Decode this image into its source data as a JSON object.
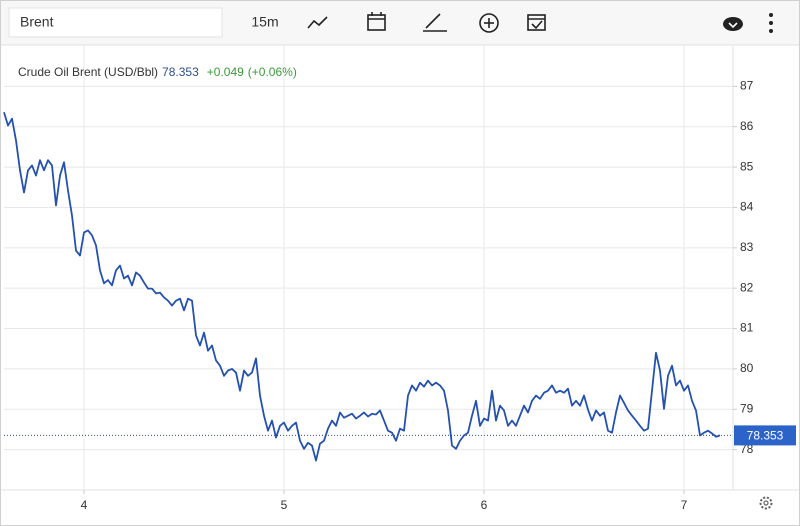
{
  "toolbar": {
    "symbol": "Brent",
    "interval": "15m"
  },
  "chart_data": {
    "type": "line",
    "title": "Crude Oil Brent (USD/Bbl)",
    "last": 78.353,
    "change": "+0.049",
    "change_pct": "(+0.06%)",
    "color": "#2451b0",
    "grid": true,
    "xlim": [
      3.6,
      7.245
    ],
    "xticks": [
      4,
      5,
      6,
      7
    ],
    "ylim": [
      77,
      88
    ],
    "yticks": [
      78,
      79,
      80,
      81,
      82,
      83,
      84,
      85,
      86,
      87
    ],
    "x": [
      3.6,
      3.62,
      3.64,
      3.66,
      3.68,
      3.7,
      3.72,
      3.74,
      3.76,
      3.78,
      3.8,
      3.82,
      3.84,
      3.86,
      3.88,
      3.9,
      3.92,
      3.94,
      3.96,
      3.98,
      4,
      4.02,
      4.04,
      4.06,
      4.08,
      4.1,
      4.12,
      4.14,
      4.16,
      4.18,
      4.2,
      4.22,
      4.24,
      4.26,
      4.28,
      4.3,
      4.32,
      4.34,
      4.36,
      4.38,
      4.4,
      4.42,
      4.44,
      4.46,
      4.48,
      4.5,
      4.52,
      4.54,
      4.56,
      4.58,
      4.6,
      4.62,
      4.64,
      4.66,
      4.68,
      4.7,
      4.72,
      4.74,
      4.76,
      4.78,
      4.8,
      4.82,
      4.84,
      4.86,
      4.88,
      4.9,
      4.92,
      4.94,
      4.96,
      4.98,
      5,
      5.02,
      5.04,
      5.06,
      5.08,
      5.1,
      5.12,
      5.14,
      5.16,
      5.18,
      5.2,
      5.22,
      5.24,
      5.26,
      5.28,
      5.3,
      5.32,
      5.34,
      5.36,
      5.38,
      5.4,
      5.42,
      5.44,
      5.46,
      5.48,
      5.5,
      5.52,
      5.54,
      5.56,
      5.58,
      5.6,
      5.62,
      5.64,
      5.66,
      5.68,
      5.7,
      5.72,
      5.74,
      5.76,
      5.78,
      5.8,
      5.82,
      5.84,
      5.86,
      5.88,
      5.9,
      5.92,
      5.94,
      5.96,
      5.98,
      6,
      6.02,
      6.04,
      6.06,
      6.08,
      6.1,
      6.12,
      6.14,
      6.16,
      6.18,
      6.2,
      6.22,
      6.24,
      6.26,
      6.28,
      6.3,
      6.32,
      6.34,
      6.36,
      6.38,
      6.4,
      6.42,
      6.44,
      6.46,
      6.48,
      6.5,
      6.52,
      6.54,
      6.56,
      6.58,
      6.6,
      6.62,
      6.64,
      6.66,
      6.68,
      6.7,
      6.72,
      6.74,
      6.76,
      6.78,
      6.8,
      6.82,
      6.84,
      6.86,
      6.88,
      6.9,
      6.92,
      6.94,
      6.96,
      6.98,
      7,
      7.02,
      7.04,
      7.06,
      7.08,
      7.1,
      7.12,
      7.14,
      7.16,
      7.18
    ],
    "values": [
      86.36,
      86.03,
      86.2,
      85.66,
      84.92,
      84.37,
      84.92,
      85.04,
      84.79,
      85.17,
      84.92,
      85.17,
      85.04,
      84.05,
      84.79,
      85.12,
      84.42,
      83.8,
      82.93,
      82.81,
      83.38,
      83.43,
      83.31,
      83.06,
      82.44,
      82.12,
      82.2,
      82.07,
      82.44,
      82.56,
      82.24,
      82.31,
      82.07,
      82.39,
      82.31,
      82.14,
      81.99,
      81.99,
      81.87,
      81.89,
      81.77,
      81.69,
      81.57,
      81.69,
      81.74,
      81.45,
      81.74,
      81.69,
      80.83,
      80.58,
      80.9,
      80.45,
      80.58,
      80.21,
      80.08,
      79.83,
      79.96,
      80.0,
      79.91,
      79.46,
      79.96,
      79.83,
      79.91,
      80.26,
      79.34,
      78.84,
      78.47,
      78.72,
      78.3,
      78.59,
      78.67,
      78.47,
      78.59,
      78.67,
      78.22,
      78.02,
      78.17,
      78.1,
      77.73,
      78.15,
      78.22,
      78.52,
      78.72,
      78.59,
      78.92,
      78.79,
      78.84,
      78.89,
      78.77,
      78.84,
      78.92,
      78.82,
      78.89,
      78.87,
      78.97,
      78.72,
      78.47,
      78.42,
      78.22,
      78.52,
      78.47,
      79.34,
      79.59,
      79.46,
      79.66,
      79.56,
      79.71,
      79.59,
      79.66,
      79.59,
      79.46,
      78.97,
      78.1,
      78.02,
      78.22,
      78.35,
      78.42,
      78.84,
      79.21,
      78.59,
      78.77,
      78.72,
      79.46,
      78.72,
      79.09,
      78.97,
      78.59,
      78.72,
      78.59,
      78.84,
      79.09,
      78.92,
      79.21,
      79.34,
      79.26,
      79.41,
      79.46,
      79.59,
      79.41,
      79.46,
      79.41,
      79.51,
      79.09,
      79.21,
      79.09,
      79.34,
      78.99,
      78.72,
      78.97,
      78.84,
      78.92,
      78.47,
      78.42,
      78.92,
      79.34,
      79.16,
      78.97,
      78.84,
      78.72,
      78.59,
      78.47,
      78.52,
      79.46,
      80.4,
      79.96,
      79.01,
      79.83,
      80.08,
      79.59,
      79.71,
      79.46,
      79.59,
      79.21,
      78.97,
      78.35,
      78.42,
      78.47,
      78.4,
      78.32,
      78.353
    ]
  }
}
